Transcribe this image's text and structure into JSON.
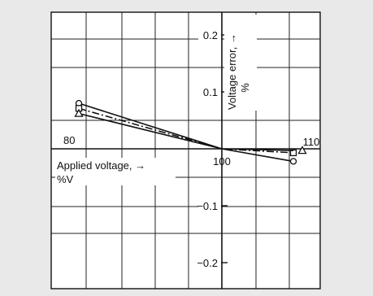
{
  "chart_data": {
    "type": "line",
    "title": "",
    "xlabel": "Applied voltage, →\n%V",
    "ylabel": "Voltage error, →\n%",
    "xlim": [
      80,
      110
    ],
    "ylim": [
      -0.25,
      0.25
    ],
    "x_tick_labels": [
      "80",
      "100",
      "110"
    ],
    "y_tick_labels": [
      "0.2",
      "0.1",
      "−0.1",
      "−0.2"
    ],
    "grid": true,
    "series": [
      {
        "marker": "circle",
        "line_style": "solid",
        "x": [
          80,
          100,
          110
        ],
        "y": [
          0.08,
          0.0,
          -0.022
        ]
      },
      {
        "marker": "square",
        "line_style": "dashdot",
        "x": [
          80,
          100,
          110
        ],
        "y": [
          0.071,
          0.0,
          -0.007
        ]
      },
      {
        "marker": "triangle",
        "line_style": "solid",
        "x": [
          80,
          100,
          110
        ],
        "y": [
          0.062,
          0.0,
          -0.003
        ]
      }
    ]
  }
}
